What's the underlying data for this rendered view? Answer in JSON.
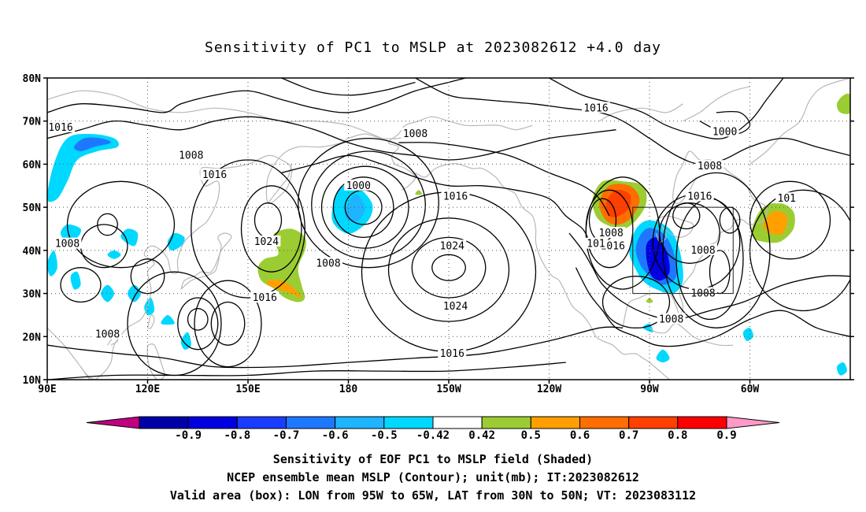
{
  "title": "Sensitivity of PC1 to MSLP at 2023082612 +4.0 day",
  "lat_labels": [
    "80N",
    "70N",
    "60N",
    "50N",
    "40N",
    "30N",
    "20N",
    "10N"
  ],
  "lon_labels": [
    "90E",
    "120E",
    "150E",
    "180",
    "150W",
    "120W",
    "90W",
    "60W"
  ],
  "contour_labels": [
    {
      "text": "1016",
      "lon": 254,
      "lat": 73
    },
    {
      "text": "1008",
      "lon": 200,
      "lat": 67
    },
    {
      "text": "1000",
      "lon": 183,
      "lat": 55
    },
    {
      "text": "1016",
      "lon": 212,
      "lat": 52.5
    },
    {
      "text": "1016",
      "lon": 140,
      "lat": 57.5
    },
    {
      "text": "1008",
      "lon": 133,
      "lat": 62
    },
    {
      "text": "1024",
      "lon": 155.5,
      "lat": 42
    },
    {
      "text": "1016",
      "lon": 155,
      "lat": 29
    },
    {
      "text": "1008",
      "lon": 174,
      "lat": 37
    },
    {
      "text": "1024",
      "lon": 211,
      "lat": 41
    },
    {
      "text": "1024",
      "lon": 212,
      "lat": 27
    },
    {
      "text": "1016",
      "lon": 211,
      "lat": 16
    },
    {
      "text": "1008",
      "lon": 108,
      "lat": 20.5
    },
    {
      "text": "1008",
      "lon": 96,
      "lat": 41.5
    },
    {
      "text": "1016",
      "lon": 94,
      "lat": 68.5
    },
    {
      "text": "1008",
      "lon": 258.5,
      "lat": 44
    },
    {
      "text": "1016",
      "lon": 259,
      "lat": 41
    },
    {
      "text": "101",
      "lon": 254,
      "lat": 41.5
    },
    {
      "text": "1008",
      "lon": 276.5,
      "lat": 24
    },
    {
      "text": "1016",
      "lon": 285,
      "lat": 52.5
    },
    {
      "text": "1008",
      "lon": 288,
      "lat": 59.5
    },
    {
      "text": "1000",
      "lon": 292.5,
      "lat": 67.5
    },
    {
      "text": "1008",
      "lon": 286,
      "lat": 40
    },
    {
      "text": "1008",
      "lon": 286,
      "lat": 30
    },
    {
      "text": "101",
      "lon": 311,
      "lat": 52
    }
  ],
  "colorbar": {
    "labels": [
      "-0.9",
      "-0.8",
      "-0.7",
      "-0.6",
      "-0.5",
      "-0.42",
      "0.42",
      "0.5",
      "0.6",
      "0.7",
      "0.8",
      "0.9"
    ],
    "colors": [
      "#c00080",
      "#0000a8",
      "#0000e0",
      "#1a3cff",
      "#1e78ff",
      "#1eb4ff",
      "#00d8ff",
      "#ffffff",
      "#9bcd32",
      "#ff9f00",
      "#ff6e00",
      "#ff4000",
      "#ff0000",
      "#ff99c8"
    ]
  },
  "caption": {
    "line1": "Sensitivity of EOF PC1 to MSLP field (Shaded)",
    "line2": "NCEP ensemble mean MSLP (Contour); unit(mb); IT:2023082612",
    "line3": "Valid area (box): LON from 95W to 65W, LAT from 30N to 50N; VT: 2023083112"
  },
  "valid_box": {
    "lon_min": 265,
    "lon_max": 295,
    "lat_min": 30,
    "lat_max": 50
  }
}
